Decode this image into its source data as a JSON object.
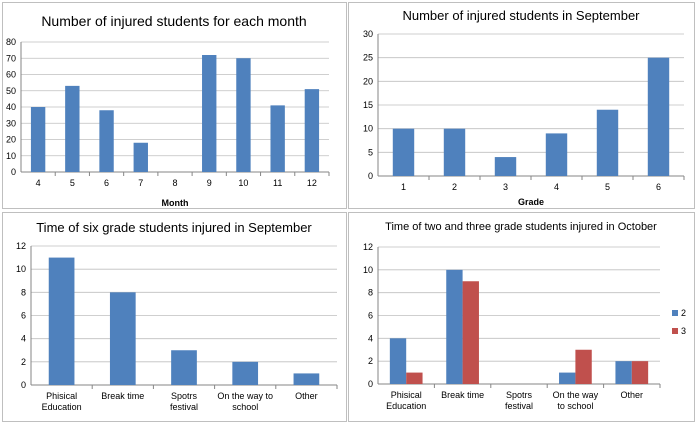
{
  "chart_data": [
    {
      "type": "bar",
      "title": "Number of injured students for each month",
      "xlabel": "Month",
      "ylabel": "",
      "ylim": [
        0,
        80
      ],
      "yticks": [
        0,
        10,
        20,
        30,
        40,
        50,
        60,
        70,
        80
      ],
      "categories": [
        "4",
        "5",
        "6",
        "7",
        "8",
        "9",
        "10",
        "11",
        "12"
      ],
      "series": [
        {
          "values": [
            40,
            53,
            38,
            18,
            0,
            72,
            70,
            41,
            51
          ],
          "color": "#4f81bd"
        }
      ],
      "legend": null
    },
    {
      "type": "bar",
      "title": "Number of injured students in September",
      "xlabel": "Grade",
      "ylabel": "",
      "ylim": [
        0,
        30
      ],
      "yticks": [
        0,
        5,
        10,
        15,
        20,
        25,
        30
      ],
      "categories": [
        "1",
        "2",
        "3",
        "4",
        "5",
        "6"
      ],
      "series": [
        {
          "values": [
            10,
            10,
            4,
            9,
            14,
            25
          ],
          "color": "#4f81bd"
        }
      ],
      "legend": null
    },
    {
      "type": "bar",
      "title": "Time of six grade students injured in September",
      "xlabel": "",
      "ylabel": "",
      "ylim": [
        0,
        12
      ],
      "yticks": [
        0,
        2,
        4,
        6,
        8,
        10,
        12
      ],
      "categories": [
        "Phisical Education",
        "Break time",
        "Spotrs festival",
        "On the way to school",
        "Other"
      ],
      "series": [
        {
          "values": [
            11,
            8,
            3,
            2,
            1
          ],
          "color": "#4f81bd"
        }
      ],
      "legend": null
    },
    {
      "type": "bar",
      "title": "Time of two and three grade students injured in October",
      "xlabel": "",
      "ylabel": "",
      "ylim": [
        0,
        12
      ],
      "yticks": [
        0,
        2,
        4,
        6,
        8,
        10,
        12
      ],
      "categories": [
        "Phisical Education",
        "Break time",
        "Spotrs festival",
        "On the way to school",
        "Other"
      ],
      "series": [
        {
          "name": "2",
          "values": [
            4,
            10,
            0,
            1,
            2
          ],
          "color": "#4f81bd"
        },
        {
          "name": "3",
          "values": [
            1,
            9,
            0,
            3,
            2
          ],
          "color": "#c0504d"
        }
      ],
      "legend": "right"
    }
  ]
}
